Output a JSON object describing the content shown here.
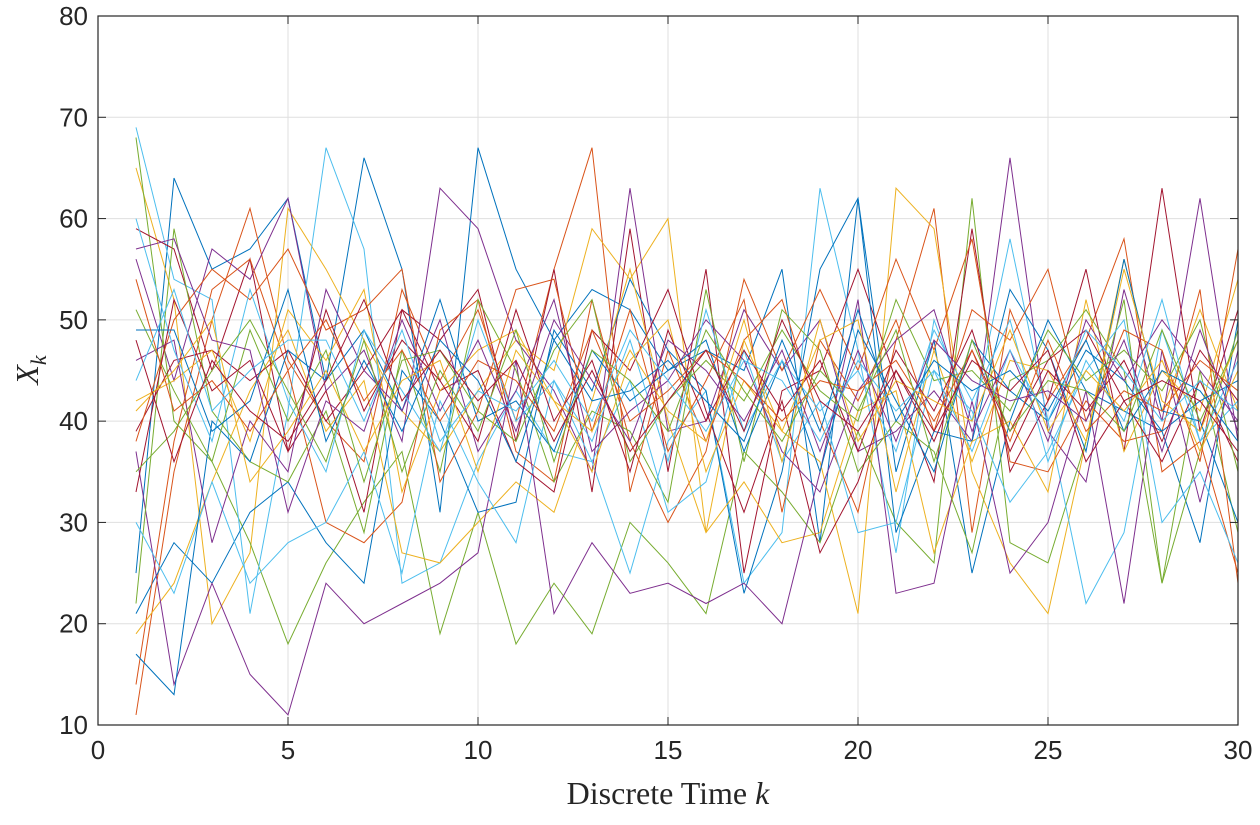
{
  "chart_data": {
    "type": "line",
    "xlabel": "Discrete Time k",
    "xlabel_parts": {
      "text": "Discrete Time ",
      "symbol": "k"
    },
    "ylabel": "X_k",
    "ylabel_parts": {
      "symbol": "X",
      "subscript": "k"
    },
    "xlim": [
      0,
      30
    ],
    "ylim": [
      10,
      80
    ],
    "xticks": [
      0,
      5,
      10,
      15,
      20,
      25,
      30
    ],
    "yticks": [
      10,
      20,
      30,
      40,
      50,
      60,
      70,
      80
    ],
    "xtick_labels": [
      "0",
      "5",
      "10",
      "15",
      "20",
      "25",
      "30"
    ],
    "ytick_labels": [
      "10",
      "20",
      "30",
      "40",
      "50",
      "60",
      "70",
      "80"
    ],
    "grid": true,
    "legend": "none",
    "colors": [
      "#0072BD",
      "#D95319",
      "#EDB120",
      "#7E2F8E",
      "#77AC30",
      "#4DBEEE",
      "#A2142F"
    ],
    "x": [
      1,
      2,
      3,
      4,
      5,
      6,
      7,
      8,
      9,
      10,
      11,
      12,
      13,
      14,
      15,
      16,
      17,
      18,
      19,
      20,
      21,
      22,
      23,
      24,
      25,
      26,
      27,
      28,
      29,
      30
    ],
    "series": [
      {
        "values": [
          25,
          64,
          55,
          57,
          62,
          44,
          66,
          55,
          31,
          67,
          55,
          48,
          53,
          51,
          45,
          47,
          45,
          55,
          28,
          62,
          35,
          48,
          25,
          40,
          50,
          43,
          41,
          39,
          28,
          50
        ]
      },
      {
        "values": [
          11,
          35,
          50,
          61,
          46,
          40,
          36,
          53,
          44,
          51,
          40,
          55,
          67,
          33,
          47,
          38,
          48,
          52,
          40,
          31,
          48,
          61,
          29,
          51,
          42,
          48,
          58,
          35,
          38,
          25
        ]
      },
      {
        "values": [
          65,
          52,
          20,
          27,
          61,
          55,
          48,
          41,
          37,
          43,
          48,
          45,
          59,
          54,
          60,
          29,
          48,
          39,
          36,
          21,
          63,
          59,
          35,
          26,
          21,
          38,
          56,
          41,
          51,
          41
        ]
      },
      {
        "values": [
          56,
          44,
          57,
          54,
          62,
          43,
          47,
          38,
          63,
          59,
          48,
          43,
          35,
          63,
          39,
          40,
          51,
          45,
          50,
          37,
          39,
          43,
          38,
          66,
          39,
          34,
          53,
          40,
          62,
          38
        ]
      },
      {
        "values": [
          68,
          40,
          36,
          28,
          18,
          26,
          32,
          37,
          19,
          31,
          18,
          24,
          19,
          30,
          26,
          21,
          37,
          33,
          28,
          39,
          30,
          26,
          62,
          28,
          26,
          38,
          52,
          24,
          45,
          29
        ]
      },
      {
        "values": [
          69,
          54,
          52,
          21,
          41,
          67,
          57,
          24,
          26,
          36,
          43,
          37,
          36,
          25,
          38,
          43,
          24,
          29,
          63,
          47,
          27,
          50,
          40,
          58,
          40,
          22,
          29,
          49,
          38,
          42
        ]
      },
      {
        "values": [
          59,
          57,
          45,
          56,
          37,
          43,
          31,
          51,
          48,
          53,
          38,
          55,
          33,
          59,
          35,
          55,
          25,
          43,
          45,
          55,
          44,
          34,
          59,
          35,
          42,
          55,
          37,
          63,
          39,
          51
        ]
      },
      {
        "values": [
          21,
          28,
          24,
          31,
          34,
          28,
          24,
          45,
          40,
          31,
          32,
          49,
          43,
          54,
          47,
          43,
          23,
          35,
          55,
          62,
          29,
          39,
          38,
          53,
          47,
          37,
          56,
          41,
          40,
          30
        ]
      },
      {
        "values": [
          14,
          38,
          53,
          56,
          45,
          30,
          28,
          32,
          49,
          52,
          37,
          34,
          52,
          38,
          30,
          37,
          54,
          45,
          53,
          45,
          56,
          47,
          58,
          36,
          35,
          42,
          38,
          39,
          53,
          24
        ]
      },
      {
        "values": [
          19,
          24,
          34,
          43,
          49,
          39,
          44,
          27,
          26,
          30,
          34,
          31,
          42,
          55,
          40,
          29,
          34,
          28,
          29,
          41,
          43,
          27,
          38,
          40,
          33,
          52,
          37,
          45,
          41,
          54
        ]
      },
      {
        "values": [
          37,
          14,
          24,
          15,
          11,
          24,
          20,
          22,
          24,
          27,
          46,
          21,
          28,
          23,
          24,
          22,
          24,
          20,
          35,
          52,
          23,
          24,
          42,
          25,
          30,
          43,
          22,
          47,
          32,
          47
        ]
      },
      {
        "values": [
          22,
          59,
          41,
          36,
          34,
          41,
          29,
          47,
          35,
          52,
          45,
          34,
          41,
          39,
          32,
          53,
          36,
          51,
          47,
          35,
          40,
          37,
          27,
          44,
          46,
          51,
          45,
          24,
          37,
          49
        ]
      },
      {
        "values": [
          30,
          23,
          34,
          24,
          28,
          30,
          37,
          25,
          42,
          34,
          28,
          44,
          36,
          44,
          31,
          34,
          47,
          36,
          42,
          29,
          30,
          45,
          41,
          32,
          37,
          45,
          50,
          30,
          35,
          26
        ]
      },
      {
        "values": [
          39,
          46,
          47,
          44,
          47,
          40,
          45,
          51,
          43,
          45,
          36,
          33,
          49,
          45,
          53,
          41,
          31,
          42,
          27,
          34,
          45,
          38,
          47,
          39,
          46,
          49,
          42,
          36,
          44,
          36
        ]
      },
      {
        "values": [
          17,
          13,
          40,
          36,
          47,
          44,
          49,
          41,
          52,
          40,
          42,
          37,
          47,
          42,
          45,
          48,
          37,
          46,
          35,
          49,
          42,
          35,
          48,
          43,
          40,
          47,
          44,
          39,
          42,
          44
        ]
      },
      {
        "values": [
          38,
          50,
          55,
          52,
          57,
          49,
          51,
          55,
          34,
          41,
          53,
          54,
          39,
          51,
          37,
          44,
          52,
          31,
          48,
          42,
          50,
          39,
          51,
          48,
          55,
          40,
          49,
          47,
          36,
          57
        ]
      },
      {
        "values": [
          42,
          44,
          47,
          38,
          51,
          46,
          53,
          33,
          43,
          47,
          49,
          42,
          35,
          46,
          50,
          35,
          44,
          39,
          48,
          50,
          33,
          47,
          36,
          46,
          45,
          38,
          55,
          42,
          39,
          48
        ]
      },
      {
        "values": [
          46,
          48,
          28,
          40,
          35,
          53,
          45,
          41,
          50,
          37,
          43,
          52,
          37,
          41,
          44,
          50,
          46,
          37,
          33,
          43,
          48,
          51,
          39,
          47,
          38,
          50,
          44,
          50,
          45,
          40
        ]
      },
      {
        "values": [
          51,
          43,
          36,
          49,
          40,
          47,
          34,
          46,
          47,
          41,
          38,
          47,
          52,
          36,
          42,
          46,
          42,
          49,
          43,
          40,
          52,
          44,
          45,
          41,
          49,
          44,
          47,
          43,
          50,
          35
        ]
      },
      {
        "values": [
          60,
          47,
          38,
          53,
          42,
          35,
          49,
          43,
          37,
          50,
          40,
          44,
          38,
          48,
          36,
          51,
          39,
          46,
          41,
          45,
          37,
          49,
          42,
          50,
          36,
          46,
          40,
          52,
          38,
          46
        ]
      },
      {
        "values": [
          33,
          52,
          43,
          46,
          37,
          51,
          41,
          48,
          44,
          38,
          51,
          40,
          46,
          35,
          49,
          40,
          47,
          41,
          46,
          37,
          47,
          41,
          49,
          37,
          45,
          41,
          46,
          38,
          47,
          42
        ]
      },
      {
        "values": [
          49,
          49,
          39,
          42,
          53,
          38,
          46,
          39,
          48,
          44,
          36,
          48,
          42,
          43,
          46,
          42,
          38,
          48,
          39,
          51,
          40,
          46,
          43,
          45,
          41,
          48,
          39,
          45,
          43,
          38
        ]
      },
      {
        "values": [
          54,
          41,
          44,
          39,
          45,
          50,
          42,
          47,
          40,
          46,
          44,
          39,
          49,
          40,
          43,
          47,
          44,
          40,
          44,
          43,
          46,
          40,
          47,
          38,
          48,
          39,
          43,
          41,
          46,
          43
        ]
      },
      {
        "values": [
          41,
          45,
          50,
          34,
          39,
          45,
          37,
          44,
          46,
          35,
          47,
          42,
          39,
          47,
          41,
          38,
          50,
          36,
          50,
          38,
          44,
          42,
          40,
          49,
          39,
          45,
          41,
          46,
          37,
          45
        ]
      },
      {
        "values": [
          57,
          58,
          48,
          47,
          31,
          42,
          39,
          50,
          41,
          48,
          39,
          50,
          44,
          38,
          48,
          45,
          40,
          47,
          37,
          47,
          38,
          48,
          44,
          42,
          43,
          40,
          48,
          37,
          49,
          39
        ]
      },
      {
        "values": [
          35,
          39,
          45,
          50,
          43,
          36,
          48,
          35,
          45,
          39,
          49,
          36,
          47,
          44,
          39,
          49,
          43,
          38,
          45,
          41,
          49,
          36,
          48,
          39,
          44,
          43,
          39,
          49,
          40,
          48
        ]
      },
      {
        "values": [
          44,
          53,
          41,
          45,
          48,
          48,
          40,
          49,
          38,
          43,
          41,
          46,
          40,
          49,
          44,
          39,
          46,
          44,
          38,
          46,
          41,
          45,
          37,
          47,
          40,
          49,
          45,
          40,
          44,
          41
        ]
      },
      {
        "values": [
          48,
          36,
          46,
          41,
          38,
          44,
          52,
          42,
          47,
          42,
          46,
          38,
          45,
          37,
          42,
          47,
          39,
          50,
          42,
          39,
          45,
          39,
          46,
          43,
          47,
          36,
          42,
          44,
          42,
          37
        ]
      }
    ]
  }
}
